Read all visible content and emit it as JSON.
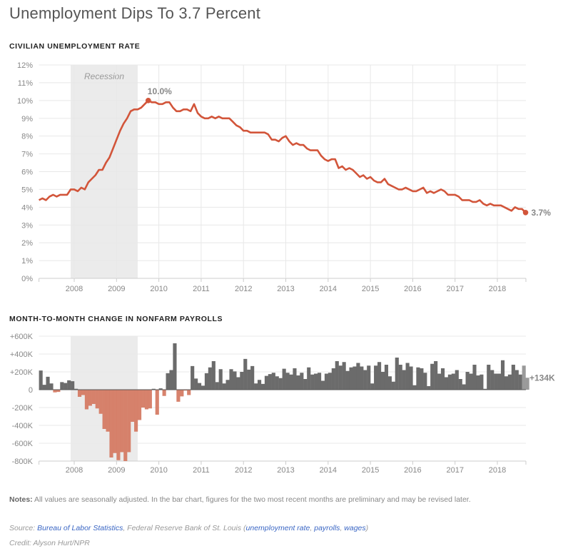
{
  "title": "Unemployment Dips To 3.7 Percent",
  "notes": {
    "label": "Notes:",
    "text": " All values are seasonally adjusted. In the bar chart, figures for the two most recent months are preliminary and may be revised later."
  },
  "source": {
    "label": "Source: ",
    "link1": "Bureau of Labor Statistics",
    "mid": ", Federal Reserve Bank of St. Louis (",
    "link2": "unemployment rate",
    "sep1": ", ",
    "link3": "payrolls",
    "sep2": ", ",
    "link4": "wages",
    "end": ")"
  },
  "credit": "Credit: Alyson Hurt/NPR",
  "colors": {
    "line": "#d2553a",
    "positive": "#6b6b6b",
    "negative": "#d4775f",
    "preliminary": "#9a9a9a",
    "recession": "#ebebeb"
  },
  "chart_data": [
    {
      "type": "line",
      "title": "CIVILIAN UNEMPLOYMENT RATE",
      "start": "2007-03",
      "ylim": [
        0,
        12
      ],
      "yticks": [
        "0%",
        "1%",
        "2%",
        "3%",
        "4%",
        "5%",
        "6%",
        "7%",
        "8%",
        "9%",
        "10%",
        "11%",
        "12%"
      ],
      "xticks": [
        "2008",
        "2009",
        "2010",
        "2011",
        "2012",
        "2013",
        "2014",
        "2015",
        "2016",
        "2017",
        "2018"
      ],
      "recession": {
        "label": "Recession",
        "start": "2007-12",
        "end": "2009-06"
      },
      "annotations": [
        {
          "month": "2009-10",
          "label": "10.0%"
        },
        {
          "month": "2018-09",
          "label": "3.7%"
        }
      ],
      "values": [
        4.4,
        4.5,
        4.4,
        4.6,
        4.7,
        4.6,
        4.7,
        4.7,
        4.7,
        5.0,
        5.0,
        4.9,
        5.1,
        5.0,
        5.4,
        5.6,
        5.8,
        6.1,
        6.1,
        6.5,
        6.8,
        7.3,
        7.8,
        8.3,
        8.7,
        9.0,
        9.4,
        9.5,
        9.5,
        9.6,
        9.8,
        10.0,
        9.9,
        9.9,
        9.8,
        9.8,
        9.9,
        9.9,
        9.6,
        9.4,
        9.4,
        9.5,
        9.5,
        9.4,
        9.8,
        9.3,
        9.1,
        9.0,
        9.0,
        9.1,
        9.0,
        9.1,
        9.0,
        9.0,
        9.0,
        8.8,
        8.6,
        8.5,
        8.3,
        8.3,
        8.2,
        8.2,
        8.2,
        8.2,
        8.2,
        8.1,
        7.8,
        7.8,
        7.7,
        7.9,
        8.0,
        7.7,
        7.5,
        7.6,
        7.5,
        7.5,
        7.3,
        7.2,
        7.2,
        7.2,
        6.9,
        6.7,
        6.6,
        6.7,
        6.7,
        6.2,
        6.3,
        6.1,
        6.2,
        6.1,
        5.9,
        5.7,
        5.8,
        5.6,
        5.7,
        5.5,
        5.4,
        5.4,
        5.6,
        5.3,
        5.2,
        5.1,
        5.0,
        5.0,
        5.1,
        5.0,
        4.9,
        4.9,
        5.0,
        5.1,
        4.8,
        4.9,
        4.8,
        4.9,
        5.0,
        4.9,
        4.7,
        4.7,
        4.7,
        4.6,
        4.4,
        4.4,
        4.4,
        4.3,
        4.3,
        4.4,
        4.2,
        4.1,
        4.2,
        4.1,
        4.1,
        4.1,
        4.0,
        3.9,
        3.8,
        4.0,
        3.9,
        3.9,
        3.7
      ]
    },
    {
      "type": "bar",
      "title": "MONTH-TO-MONTH CHANGE IN NONFARM PAYROLLS",
      "start": "2007-03",
      "unit": "thousands",
      "ylim": [
        -800,
        600
      ],
      "yticks": [
        "-800K",
        "-600K",
        "-400K",
        "-200K",
        "0",
        "+200K",
        "+400K",
        "+600K"
      ],
      "xticks": [
        "2008",
        "2009",
        "2010",
        "2011",
        "2012",
        "2013",
        "2014",
        "2015",
        "2016",
        "2017",
        "2018"
      ],
      "preliminary_count": 2,
      "annotations": [
        {
          "month": "2018-09",
          "label": "+134K"
        }
      ],
      "values": [
        215,
        55,
        145,
        70,
        -30,
        -25,
        85,
        75,
        105,
        95,
        10,
        -80,
        -60,
        -220,
        -180,
        -160,
        -210,
        -270,
        -440,
        -470,
        -760,
        -710,
        -790,
        -700,
        -800,
        -700,
        -360,
        -470,
        -340,
        -200,
        -220,
        -210,
        10,
        -280,
        15,
        -70,
        185,
        220,
        520,
        -135,
        -75,
        -10,
        -60,
        265,
        125,
        75,
        45,
        185,
        250,
        320,
        85,
        230,
        70,
        110,
        230,
        205,
        140,
        200,
        345,
        225,
        265,
        70,
        110,
        65,
        155,
        175,
        190,
        150,
        130,
        235,
        190,
        170,
        240,
        160,
        190,
        120,
        250,
        170,
        180,
        190,
        100,
        180,
        190,
        240,
        320,
        270,
        310,
        210,
        250,
        260,
        300,
        260,
        220,
        270,
        70,
        270,
        310,
        200,
        280,
        150,
        90,
        360,
        280,
        220,
        300,
        260,
        50,
        250,
        240,
        190,
        40,
        290,
        320,
        180,
        240,
        140,
        170,
        180,
        220,
        120,
        60,
        200,
        180,
        280,
        160,
        170,
        10,
        280,
        220,
        180,
        180,
        330,
        150,
        170,
        280,
        220,
        170,
        270,
        134
      ]
    }
  ]
}
